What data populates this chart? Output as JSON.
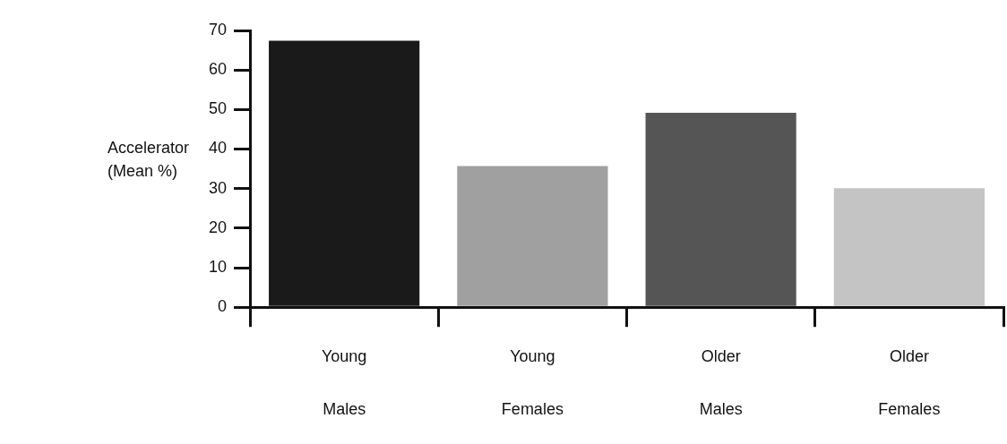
{
  "chart_data": {
    "type": "bar",
    "ylabel": "Accelerator (Mean %)",
    "categories": [
      "Young Males",
      "Young Females",
      "Older Males",
      "Older Females"
    ],
    "values": [
      67.4,
      35.7,
      49.2,
      30.1
    ],
    "colors": [
      "#1a1a1a",
      "#a0a0a0",
      "#555555",
      "#c4c4c4"
    ],
    "ylim": [
      0,
      70
    ],
    "yticks": [
      0,
      10,
      20,
      30,
      40,
      50,
      60,
      70
    ],
    "grid": false,
    "legend": false
  }
}
